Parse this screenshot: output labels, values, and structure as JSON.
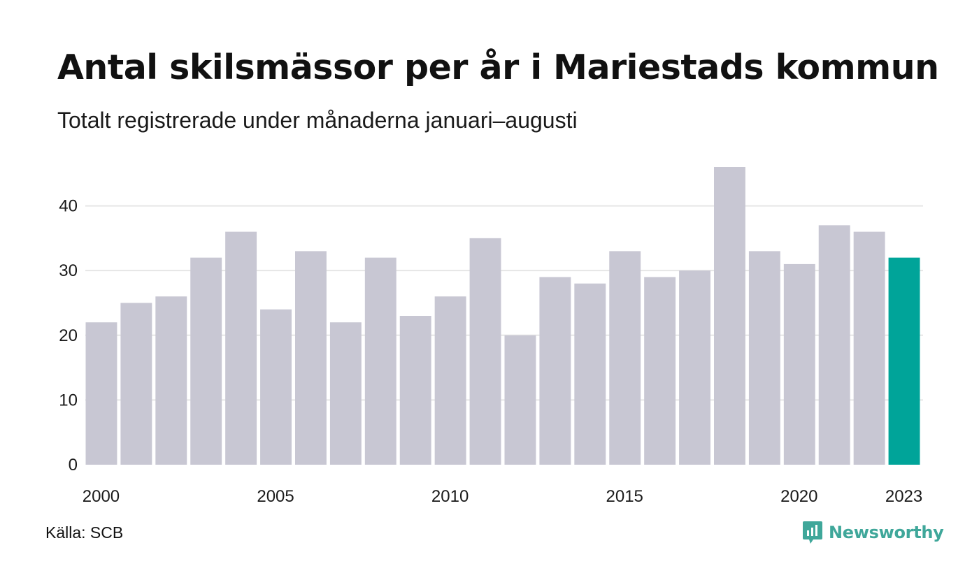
{
  "title": "Antal skilsmässor per år i Mariestads kommun",
  "subtitle": "Totalt registrerade under månaderna januari–augusti",
  "source": "Källa: SCB",
  "brand": {
    "name": "Newsworthy",
    "icon": "newsworthy-logo-icon"
  },
  "colors": {
    "bar": "#c8c7d3",
    "highlight": "#00a499",
    "grid": "#e6e6e6",
    "brand": "#3fa79a"
  },
  "chart_data": {
    "type": "bar",
    "categories": [
      "2000",
      "2001",
      "2002",
      "2003",
      "2004",
      "2005",
      "2006",
      "2007",
      "2008",
      "2009",
      "2010",
      "2011",
      "2012",
      "2013",
      "2014",
      "2015",
      "2016",
      "2017",
      "2018",
      "2019",
      "2020",
      "2021",
      "2022",
      "2023"
    ],
    "values": [
      22,
      25,
      26,
      32,
      36,
      24,
      33,
      22,
      32,
      23,
      26,
      35,
      20,
      29,
      28,
      33,
      29,
      30,
      46,
      33,
      31,
      37,
      36,
      32
    ],
    "highlight_category": "2023",
    "x_tick_labels": [
      "2000",
      "2005",
      "2010",
      "2015",
      "2020",
      "2023"
    ],
    "y_ticks": [
      0,
      10,
      20,
      30,
      40
    ],
    "ylim": [
      0,
      46
    ],
    "grid": true,
    "legend": "none"
  }
}
